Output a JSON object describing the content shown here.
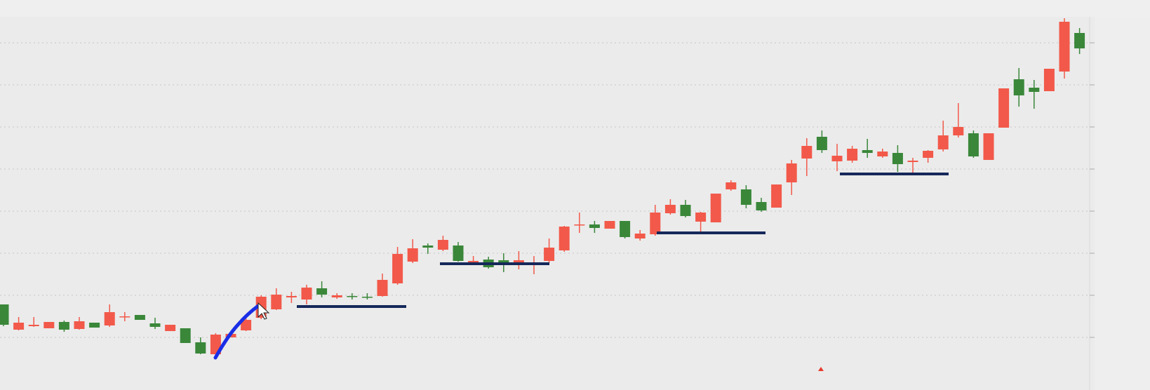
{
  "chart_data": {
    "type": "candlestick",
    "categories": [
      null,
      null,
      null,
      null,
      null,
      null,
      null,
      null,
      null,
      null,
      null,
      null,
      null,
      null,
      null,
      null,
      null,
      null,
      null,
      null,
      null,
      null,
      null,
      null,
      null,
      null,
      null,
      null,
      null,
      null,
      null,
      null,
      null,
      null,
      null,
      null,
      null,
      null,
      null,
      null,
      null,
      null,
      null,
      null,
      null,
      null,
      null,
      null,
      null,
      null,
      null,
      null,
      null,
      null,
      null,
      null,
      null,
      null,
      null,
      null,
      null,
      null,
      null,
      null,
      null,
      null,
      null,
      null,
      null,
      null,
      null,
      null
    ],
    "open": [
      12.2,
      8.6,
      9.1,
      8.8,
      9.7,
      8.7,
      9.6,
      9.2,
      10.4,
      10.7,
      9.5,
      8.4,
      8.8,
      6.8,
      5.1,
      7.5,
      8.5,
      10.3,
      11.5,
      13.2,
      12.9,
      14.5,
      13.2,
      13.4,
      13.3,
      13.4,
      15.2,
      18.3,
      20.6,
      20.0,
      20.6,
      18.2,
      18.6,
      18.5,
      17.9,
      18.0,
      18.4,
      19.9,
      23.5,
      23.6,
      23.0,
      24.1,
      21.6,
      22.2,
      25.2,
      26.4,
      24.0,
      23.9,
      28.6,
      28.6,
      26.8,
      26.0,
      29.6,
      33.0,
      36.1,
      32.6,
      32.7,
      34.2,
      33.3,
      33.8,
      32.5,
      33.1,
      34.3,
      36.3,
      36.6,
      32.8,
      37.4,
      44.3,
      43.1,
      42.6,
      45.4,
      50.9
    ],
    "high": [
      12.2,
      10.4,
      10.4,
      9.7,
      9.9,
      10.4,
      9.6,
      12.2,
      11.1,
      10.7,
      10.3,
      9.3,
      8.8,
      7.5,
      8.1,
      8.0,
      10.6,
      13.5,
      14.5,
      14.0,
      15.0,
      15.5,
      13.8,
      13.8,
      13.8,
      16.6,
      20.4,
      21.5,
      20.9,
      22.0,
      21.1,
      19.1,
      19.0,
      19.5,
      19.8,
      19.1,
      21.6,
      23.4,
      25.3,
      24.1,
      24.1,
      24.1,
      22.8,
      26.4,
      27.2,
      27.1,
      25.4,
      28.0,
      29.9,
      29.2,
      27.4,
      29.3,
      32.8,
      35.9,
      37.0,
      35.1,
      34.8,
      35.8,
      34.4,
      34.9,
      33.1,
      34.2,
      38.4,
      40.9,
      37.0,
      36.6,
      43.0,
      45.9,
      44.2,
      45.8,
      53.0,
      51.6
    ],
    "low": [
      9.1,
      8.5,
      9.0,
      8.8,
      8.3,
      8.6,
      8.9,
      9.0,
      9.8,
      10.0,
      8.7,
      8.4,
      6.7,
      5.1,
      4.8,
      7.5,
      8.4,
      10.1,
      11.4,
      12.4,
      12.2,
      13.2,
      13.0,
      12.9,
      12.9,
      13.3,
      15.0,
      18.1,
      19.4,
      19.8,
      18.3,
      17.8,
      17.3,
      16.8,
      17.2,
      16.5,
      18.1,
      19.7,
      22.4,
      22.4,
      23.0,
      21.6,
      21.3,
      22.0,
      25.0,
      24.6,
      22.6,
      23.9,
      28.4,
      25.9,
      25.4,
      26.0,
      27.8,
      30.5,
      33.8,
      31.2,
      32.4,
      33.1,
      33.1,
      31.1,
      31.0,
      32.4,
      34.0,
      36.0,
      33.1,
      32.8,
      37.4,
      40.4,
      40.1,
      42.6,
      44.4,
      47.9
    ],
    "close": [
      9.3,
      9.6,
      9.3,
      9.7,
      8.6,
      9.8,
      8.9,
      11.1,
      10.5,
      10.0,
      9.0,
      9.3,
      6.7,
      5.2,
      7.9,
      8.0,
      10.0,
      13.3,
      13.6,
      13.4,
      14.6,
      13.6,
      13.5,
      13.3,
      13.2,
      15.7,
      19.4,
      20.2,
      20.3,
      21.4,
      18.4,
      18.4,
      17.5,
      17.9,
      18.5,
      18.2,
      20.3,
      23.3,
      23.6,
      23.1,
      24.1,
      21.8,
      22.3,
      25.3,
      26.4,
      24.8,
      25.3,
      28.0,
      29.6,
      26.4,
      25.6,
      29.3,
      32.3,
      34.8,
      34.2,
      33.4,
      34.4,
      33.8,
      34.0,
      32.2,
      32.7,
      34.1,
      36.3,
      37.5,
      33.3,
      36.6,
      43.0,
      42.0,
      42.5,
      45.8,
      52.5,
      48.7
    ],
    "up_color": "#f2594a",
    "down_color": "#3a873a",
    "ylim": [
      0,
      55.6
    ],
    "yticks": [
      7.5,
      13.5,
      19.5,
      25.5,
      31.5,
      37.5,
      43.5,
      49.5
    ],
    "grid": true
  }
}
